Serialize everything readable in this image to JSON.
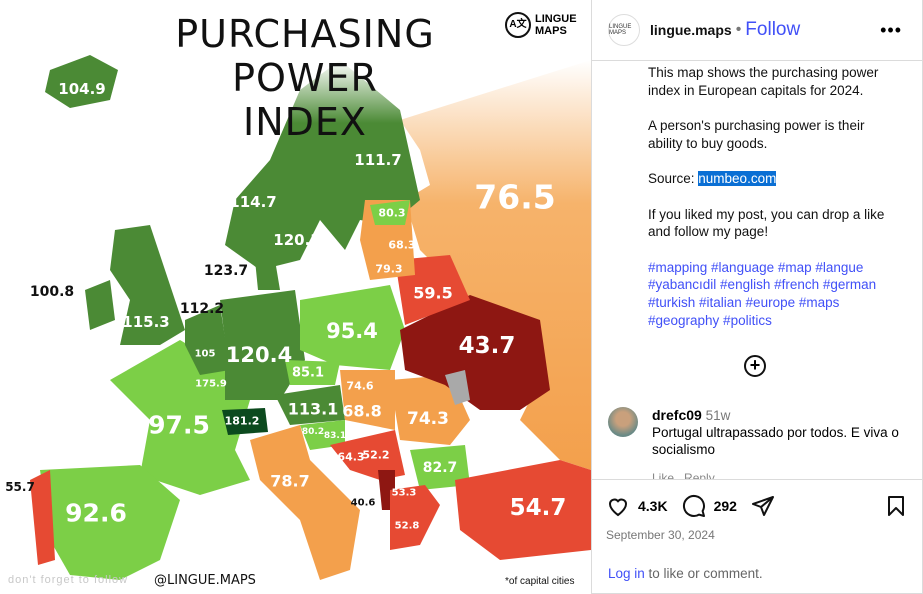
{
  "map": {
    "title_line1": "PURCHASING",
    "title_line2": "POWER INDEX",
    "logo_text_line1": "LINGUE",
    "logo_text_line2": "MAPS",
    "footer_left": "don't forget to follow",
    "footer_center": "@LINGUE.MAPS",
    "footer_right": "*of capital cities",
    "colors": {
      "very_high": "#0c4a1e",
      "high": "#4b8a35",
      "mid_high": "#7ccf47",
      "mid": "#f3a04c",
      "low": "#e64a33",
      "very_low": "#8e1712",
      "no_data": "#a9a9a9"
    },
    "values": {
      "iceland": "104.9",
      "norway": "114.7",
      "sweden": "120.3",
      "finland": "111.7",
      "denmark": "123.7",
      "uk": "115.3",
      "ireland": "100.8",
      "netherlands": "112.2",
      "belgium": "105",
      "luxembourg": "175.9",
      "germany": "120.4",
      "poland": "95.4",
      "czechia": "85.1",
      "austria": "113.1",
      "switzerland": "181.2",
      "france": "97.5",
      "spain": "92.6",
      "portugal": "55.7",
      "italy": "78.7",
      "slovenia": "80.2",
      "croatia": "83.1",
      "bosnia": "64.3",
      "serbia": "52.2",
      "montenegro": "40.6",
      "north_macedonia": "53.3",
      "greece": "52.8",
      "bulgaria": "82.7",
      "romania": "74.3",
      "hungary": "68.8",
      "slovakia": "74.6",
      "ukraine": "43.7",
      "belarus": "59.5",
      "lithuania": "79.3",
      "latvia": "68.3",
      "estonia": "80.3",
      "russia": "76.5",
      "turkey": "54.7"
    }
  },
  "post": {
    "username": "lingue.maps",
    "follow_label": "Follow",
    "avatar_text": "LINGUE MAPS",
    "caption_p1": "This map shows the purchasing power index in European capitals for 2024.",
    "caption_p2": "A person's purchasing power is their ability to buy goods.",
    "source_label": "Source: ",
    "source_link": "numbeo.com",
    "caption_p4": "If you liked my post, you can drop a like and follow my page!",
    "hashtags": "#mapping #language #map #langue #yabancıdil #english #french #german #turkish #italian #europe #maps #geography #politics",
    "comment": {
      "user": "drefc09",
      "time": "51w",
      "text": "Portugal ultrapassado por todos. E viva o socialismo",
      "like": "Like",
      "reply": "Reply"
    },
    "likes": "4.3K",
    "comments": "292",
    "date": "September 30, 2024",
    "login_link": "Log in",
    "login_text": " to like or comment."
  }
}
